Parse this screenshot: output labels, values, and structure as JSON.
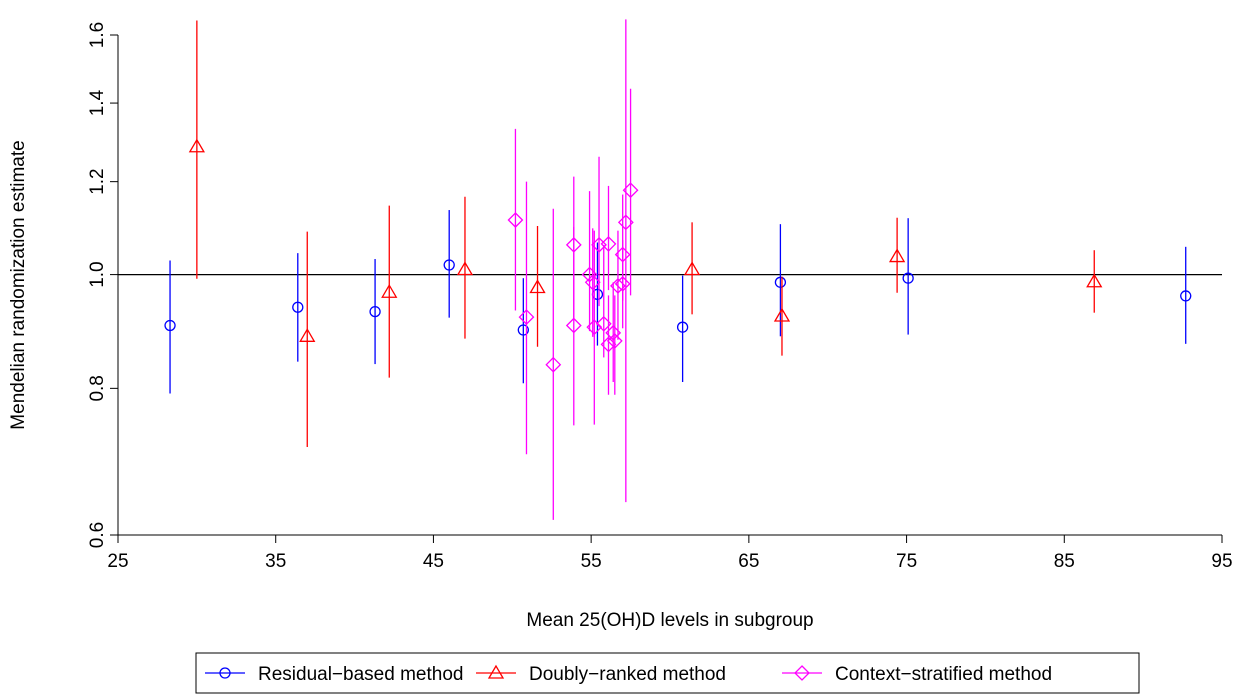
{
  "chart_data": {
    "type": "scatter",
    "xlabel": "Mean 25(OH)D levels in subgroup",
    "ylabel": "Mendelian randomization estimate",
    "xlim": [
      25,
      95
    ],
    "ylim": [
      0.6,
      1.6
    ],
    "y_scale": "log",
    "x_ticks": [
      25,
      35,
      45,
      55,
      65,
      75,
      85,
      95
    ],
    "x_tick_labels": [
      "25",
      "35",
      "45",
      "55",
      "65",
      "75",
      "85",
      "95"
    ],
    "y_ticks": [
      0.6,
      0.8,
      1.0,
      1.2,
      1.4,
      1.6
    ],
    "y_tick_labels": [
      "0.6",
      "0.8",
      "1.0",
      "1.2",
      "1.4",
      "1.6"
    ],
    "reference_line_y": 1.0,
    "grid": false,
    "legend_position": "bottom",
    "series": [
      {
        "name": "Residual−based method",
        "color": "#0000FF",
        "marker": "circle",
        "points": [
          {
            "x": 28.3,
            "y": 0.905,
            "lo": 0.792,
            "hi": 1.028
          },
          {
            "x": 36.4,
            "y": 0.938,
            "lo": 0.843,
            "hi": 1.043
          },
          {
            "x": 41.3,
            "y": 0.93,
            "lo": 0.839,
            "hi": 1.031
          },
          {
            "x": 46.0,
            "y": 1.019,
            "lo": 0.919,
            "hi": 1.135
          },
          {
            "x": 50.7,
            "y": 0.897,
            "lo": 0.808,
            "hi": 0.993
          },
          {
            "x": 55.4,
            "y": 0.962,
            "lo": 0.87,
            "hi": 1.065
          },
          {
            "x": 60.8,
            "y": 0.902,
            "lo": 0.81,
            "hi": 0.998
          },
          {
            "x": 67.0,
            "y": 0.985,
            "lo": 0.886,
            "hi": 1.104
          },
          {
            "x": 75.1,
            "y": 0.993,
            "lo": 0.889,
            "hi": 1.117
          },
          {
            "x": 92.7,
            "y": 0.959,
            "lo": 0.873,
            "hi": 1.056
          }
        ]
      },
      {
        "name": "Doubly−ranked method",
        "color": "#FF0000",
        "marker": "triangle",
        "points": [
          {
            "x": 30.0,
            "y": 1.285,
            "lo": 0.992,
            "hi": 1.646
          },
          {
            "x": 37.0,
            "y": 0.886,
            "lo": 0.713,
            "hi": 1.088
          },
          {
            "x": 42.2,
            "y": 0.966,
            "lo": 0.817,
            "hi": 1.145
          },
          {
            "x": 47.0,
            "y": 1.01,
            "lo": 0.882,
            "hi": 1.165
          },
          {
            "x": 51.6,
            "y": 0.975,
            "lo": 0.868,
            "hi": 1.1
          },
          {
            "x": 61.4,
            "y": 1.01,
            "lo": 0.925,
            "hi": 1.108
          },
          {
            "x": 67.1,
            "y": 0.922,
            "lo": 0.853,
            "hi": 0.996
          },
          {
            "x": 74.4,
            "y": 1.036,
            "lo": 0.965,
            "hi": 1.118
          },
          {
            "x": 86.9,
            "y": 0.986,
            "lo": 0.928,
            "hi": 1.049
          }
        ]
      },
      {
        "name": "Context−stratified method",
        "color": "#FF00FF",
        "marker": "diamond",
        "points": [
          {
            "x": 50.2,
            "y": 1.113,
            "lo": 0.932,
            "hi": 1.331
          },
          {
            "x": 50.9,
            "y": 0.92,
            "lo": 0.703,
            "hi": 1.2
          },
          {
            "x": 52.6,
            "y": 0.838,
            "lo": 0.618,
            "hi": 1.138
          },
          {
            "x": 53.9,
            "y": 1.06,
            "lo": 0.918,
            "hi": 1.212
          },
          {
            "x": 53.9,
            "y": 0.905,
            "lo": 0.744,
            "hi": 1.098
          },
          {
            "x": 54.9,
            "y": 1.0,
            "lo": 0.895,
            "hi": 1.178
          },
          {
            "x": 55.1,
            "y": 0.985,
            "lo": 0.885,
            "hi": 1.095
          },
          {
            "x": 55.2,
            "y": 0.902,
            "lo": 0.745,
            "hi": 1.09
          },
          {
            "x": 55.5,
            "y": 1.06,
            "lo": 0.94,
            "hi": 1.26
          },
          {
            "x": 55.8,
            "y": 0.908,
            "lo": 0.85,
            "hi": 1.06
          },
          {
            "x": 56.1,
            "y": 1.062,
            "lo": 0.97,
            "hi": 1.19
          },
          {
            "x": 56.1,
            "y": 0.872,
            "lo": 0.79,
            "hi": 0.96
          },
          {
            "x": 56.4,
            "y": 0.892,
            "lo": 0.81,
            "hi": 0.985
          },
          {
            "x": 56.5,
            "y": 0.878,
            "lo": 0.79,
            "hi": 0.96
          },
          {
            "x": 56.7,
            "y": 0.978,
            "lo": 0.88,
            "hi": 1.09
          },
          {
            "x": 57.0,
            "y": 0.982,
            "lo": 0.9,
            "hi": 1.07
          },
          {
            "x": 57.0,
            "y": 1.04,
            "lo": 0.95,
            "hi": 1.17
          },
          {
            "x": 57.2,
            "y": 1.108,
            "lo": 0.64,
            "hi": 1.65
          },
          {
            "x": 57.5,
            "y": 1.18,
            "lo": 0.96,
            "hi": 1.44
          }
        ]
      }
    ]
  }
}
